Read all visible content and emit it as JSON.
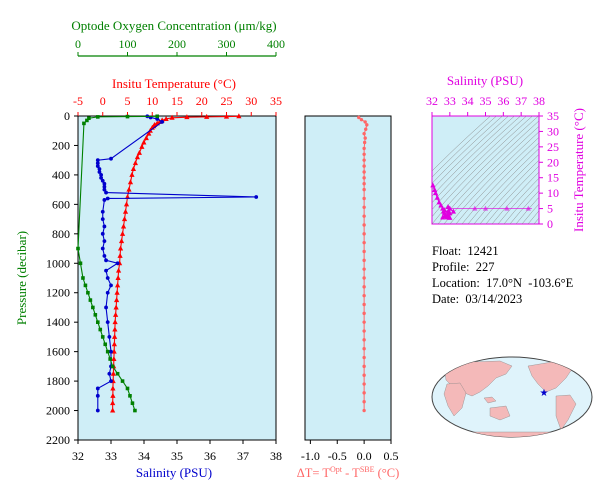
{
  "chart_data": [
    {
      "type": "line",
      "panel": "profile",
      "ylabel": "Pressure (decibar)",
      "ylim": [
        2200,
        0
      ],
      "yticks": [
        0,
        200,
        400,
        600,
        800,
        1000,
        1200,
        1400,
        1600,
        1800,
        2000,
        2200
      ],
      "axes": {
        "oxygen": {
          "label": "Optode Oxygen Concentration (μm/kg)",
          "range": [
            0,
            400
          ],
          "ticks": [
            0,
            100,
            200,
            300,
            400
          ],
          "color": "#008000"
        },
        "temperature": {
          "label": "Insitu Temperature (°C)",
          "range": [
            -5,
            35
          ],
          "ticks": [
            -5,
            0,
            5,
            10,
            15,
            20,
            25,
            30,
            35
          ],
          "color": "#ff0000"
        },
        "salinity": {
          "label": "Salinity (PSU)",
          "range": [
            32,
            38
          ],
          "ticks": [
            32,
            33,
            34,
            35,
            36,
            37,
            38
          ],
          "color": "#0000cc"
        }
      },
      "series": [
        {
          "name": "Insitu Temperature",
          "axis": "temperature",
          "color": "#ff0000",
          "marker": "triangle",
          "points": [
            [
              27.5,
              2
            ],
            [
              25,
              4
            ],
            [
              21,
              6
            ],
            [
              17,
              8
            ],
            [
              14,
              12
            ],
            [
              12.8,
              20
            ],
            [
              12,
              30
            ],
            [
              11.5,
              40
            ],
            [
              11,
              50
            ],
            [
              10.5,
              60
            ],
            [
              10.3,
              70
            ],
            [
              10,
              80
            ],
            [
              9.6,
              100
            ],
            [
              9.3,
              120
            ],
            [
              8.8,
              150
            ],
            [
              8.3,
              180
            ],
            [
              7.9,
              210
            ],
            [
              7.4,
              250
            ],
            [
              7,
              280
            ],
            [
              6.6,
              320
            ],
            [
              6.2,
              360
            ],
            [
              5.9,
              400
            ],
            [
              5.6,
              450
            ],
            [
              5.3,
              500
            ],
            [
              5,
              550
            ],
            [
              4.8,
              600
            ],
            [
              4.6,
              650
            ],
            [
              4.4,
              700
            ],
            [
              4.2,
              750
            ],
            [
              4.0,
              800
            ],
            [
              3.8,
              850
            ],
            [
              3.6,
              900
            ],
            [
              3.5,
              950
            ],
            [
              3.4,
              1000
            ],
            [
              3.2,
              1050
            ],
            [
              3.1,
              1100
            ],
            [
              3.0,
              1150
            ],
            [
              2.9,
              1200
            ],
            [
              2.8,
              1250
            ],
            [
              2.7,
              1300
            ],
            [
              2.6,
              1350
            ],
            [
              2.5,
              1400
            ],
            [
              2.45,
              1450
            ],
            [
              2.4,
              1500
            ],
            [
              2.35,
              1550
            ],
            [
              2.3,
              1600
            ],
            [
              2.25,
              1650
            ],
            [
              2.2,
              1700
            ],
            [
              2.15,
              1750
            ],
            [
              2.1,
              1800
            ],
            [
              2.05,
              1850
            ],
            [
              2.05,
              1900
            ],
            [
              2.0,
              1950
            ],
            [
              2.0,
              2000
            ]
          ]
        },
        {
          "name": "Salinity",
          "axis": "salinity",
          "color": "#0000cc",
          "marker": "circle",
          "points": [
            [
              34.1,
              2
            ],
            [
              34.2,
              10
            ],
            [
              34.4,
              20
            ],
            [
              34.55,
              40
            ],
            [
              33.0,
              290
            ],
            [
              32.6,
              300
            ],
            [
              32.6,
              320
            ],
            [
              32.6,
              340
            ],
            [
              32.65,
              360
            ],
            [
              32.65,
              380
            ],
            [
              32.7,
              400
            ],
            [
              32.7,
              420
            ],
            [
              32.75,
              440
            ],
            [
              32.8,
              460
            ],
            [
              32.8,
              480
            ],
            [
              32.8,
              500
            ],
            [
              32.85,
              520
            ],
            [
              37.4,
              550
            ],
            [
              32.9,
              560
            ],
            [
              32.8,
              570
            ],
            [
              32.75,
              650
            ],
            [
              32.75,
              700
            ],
            [
              32.8,
              750
            ],
            [
              32.75,
              800
            ],
            [
              32.8,
              850
            ],
            [
              32.75,
              900
            ],
            [
              32.8,
              950
            ],
            [
              32.85,
              980
            ],
            [
              33.2,
              1000
            ],
            [
              32.85,
              1050
            ],
            [
              32.9,
              1100
            ],
            [
              33.0,
              1150
            ],
            [
              32.9,
              1200
            ],
            [
              32.85,
              1300
            ],
            [
              32.9,
              1400
            ],
            [
              32.95,
              1500
            ],
            [
              33.0,
              1600
            ],
            [
              33.0,
              1700
            ],
            [
              32.95,
              1750
            ],
            [
              33.0,
              1800
            ],
            [
              32.6,
              1850
            ],
            [
              32.6,
              1900
            ],
            [
              32.6,
              2000
            ]
          ]
        },
        {
          "name": "Optode Oxygen Concentration",
          "axis": "oxygen",
          "color": "#008000",
          "marker": "square",
          "points": [
            [
              160,
              2
            ],
            [
              100,
              4
            ],
            [
              40,
              6
            ],
            [
              22,
              15
            ],
            [
              18,
              30
            ],
            [
              12,
              50
            ],
            [
              0,
              900
            ],
            [
              5,
              1000
            ],
            [
              10,
              1100
            ],
            [
              15,
              1150
            ],
            [
              20,
              1200
            ],
            [
              25,
              1250
            ],
            [
              30,
              1300
            ],
            [
              35,
              1350
            ],
            [
              40,
              1400
            ],
            [
              45,
              1450
            ],
            [
              50,
              1500
            ],
            [
              55,
              1550
            ],
            [
              60,
              1600
            ],
            [
              65,
              1650
            ],
            [
              70,
              1700
            ],
            [
              80,
              1750
            ],
            [
              90,
              1800
            ],
            [
              100,
              1850
            ],
            [
              105,
              1900
            ],
            [
              110,
              1950
            ],
            [
              115,
              2000
            ]
          ]
        }
      ]
    },
    {
      "type": "scatter",
      "panel": "delta-t",
      "xlabel": "ΔT= T",
      "xlabel_sup1": "Opt",
      "xlabel_mid": " - T",
      "xlabel_sup2": "SBE",
      "xlabel_unit": " (°C)",
      "xlim": [
        -1.1,
        0.5
      ],
      "xticks": [
        -1.0,
        -0.5,
        0.0,
        0.5
      ],
      "xticklabels": [
        "-1.0",
        "-0.5",
        "0.0",
        "0.5"
      ],
      "ylim": [
        2200,
        0
      ],
      "color": "#ff6666",
      "points": [
        [
          -0.1,
          10
        ],
        [
          -0.05,
          25
        ],
        [
          0.02,
          40
        ],
        [
          0.05,
          60
        ],
        [
          0.03,
          90
        ],
        [
          0.0,
          120
        ],
        [
          0.02,
          150
        ],
        [
          0.01,
          180
        ],
        [
          0.0,
          220
        ],
        [
          0.0,
          260
        ],
        [
          0.0,
          300
        ],
        [
          0.0,
          340
        ],
        [
          0.0,
          380
        ],
        [
          0.0,
          420
        ],
        [
          0.0,
          460
        ],
        [
          0.0,
          500
        ],
        [
          0.0,
          560
        ],
        [
          0.0,
          620
        ],
        [
          0.0,
          680
        ],
        [
          0.0,
          740
        ],
        [
          0.0,
          800
        ],
        [
          0.0,
          860
        ],
        [
          0.0,
          920
        ],
        [
          0.0,
          980
        ],
        [
          0.0,
          1040
        ],
        [
          0.0,
          1100
        ],
        [
          0.0,
          1160
        ],
        [
          0.0,
          1220
        ],
        [
          0.0,
          1280
        ],
        [
          0.0,
          1340
        ],
        [
          0.0,
          1400
        ],
        [
          0.0,
          1460
        ],
        [
          0.0,
          1520
        ],
        [
          0.0,
          1580
        ],
        [
          0.0,
          1640
        ],
        [
          0.0,
          1700
        ],
        [
          0.0,
          1760
        ],
        [
          0.0,
          1820
        ],
        [
          0.0,
          1880
        ],
        [
          0.0,
          1940
        ],
        [
          0.0,
          2000
        ]
      ]
    },
    {
      "type": "scatter",
      "panel": "ts-diagram",
      "xlabel": "Salinity (PSU)",
      "ylabel": "Insitu Temperature (°C)",
      "xlim": [
        32,
        38
      ],
      "ylim": [
        0,
        35
      ],
      "xticks": [
        32,
        33,
        34,
        35,
        36,
        37,
        38
      ],
      "yticks": [
        0,
        5,
        10,
        15,
        20,
        25,
        30,
        35
      ],
      "color": "#e000e0",
      "points": [
        [
          32.05,
          12.5
        ],
        [
          32.15,
          11
        ],
        [
          32.2,
          10
        ],
        [
          32.3,
          8.5
        ],
        [
          32.4,
          7
        ],
        [
          32.5,
          6
        ],
        [
          32.6,
          5
        ],
        [
          32.65,
          4
        ],
        [
          32.7,
          3.5
        ],
        [
          32.75,
          3
        ],
        [
          32.8,
          2.5
        ],
        [
          32.85,
          2.2
        ],
        [
          32.9,
          2.1
        ],
        [
          33.0,
          2.0
        ],
        [
          32.6,
          2.1
        ],
        [
          32.9,
          3
        ],
        [
          32.9,
          4
        ],
        [
          33.0,
          5
        ],
        [
          33.2,
          4
        ],
        [
          32.9,
          5.5
        ],
        [
          33.0,
          3.5
        ],
        [
          32.7,
          4.5
        ]
      ],
      "outliers": [
        [
          35.0,
          5.0
        ],
        [
          36.2,
          5.0
        ],
        [
          37.4,
          5.0
        ],
        [
          34.4,
          5.0
        ]
      ]
    }
  ],
  "info": {
    "float_label": "Float:",
    "float_value": "12421",
    "profile_label": "Profile:",
    "profile_value": "227",
    "location_label": "Location:",
    "location_value": "17.0°N  -103.6°E",
    "date_label": "Date:",
    "date_value": "03/14/2023"
  },
  "colors": {
    "panel_bg": "#cfeef7",
    "temperature": "#ff0000",
    "salinity": "#0000cc",
    "oxygen": "#008000",
    "delta": "#ff6666",
    "ts": "#e000e0",
    "map_ocean": "#dff3fb",
    "map_land": "#f4b9b9"
  },
  "map": {
    "float_marker": "blue-star-icon"
  }
}
